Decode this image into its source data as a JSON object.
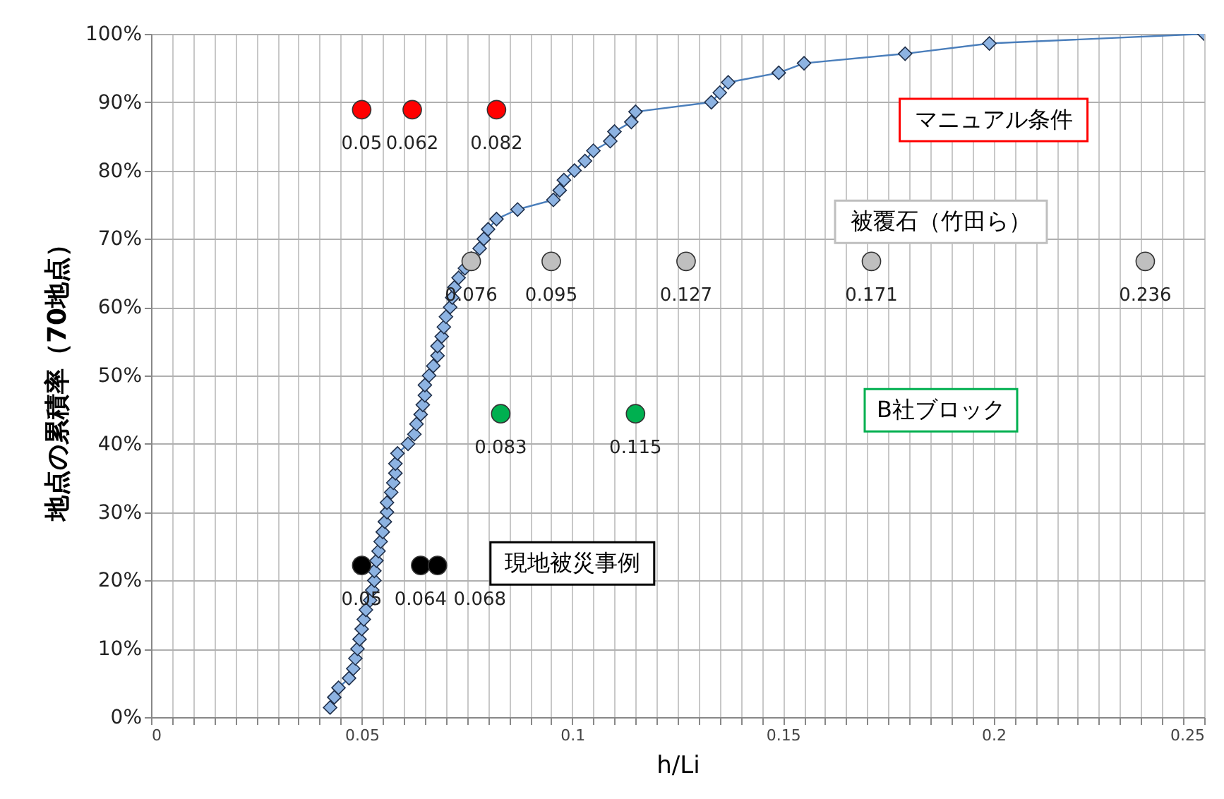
{
  "chart_data": {
    "type": "line",
    "xlabel": "h/Li",
    "ylabel": "地点の累積率（70地点）",
    "xlim": [
      0,
      0.25
    ],
    "ylim": [
      0,
      100
    ],
    "xticks": [
      0,
      {
        "value": 0.005,
        "label": null
      },
      {
        "value": 0.01,
        "label": null
      },
      {
        "value": 0.015,
        "label": null
      },
      {
        "value": 0.02,
        "label": null
      },
      {
        "value": 0.025,
        "label": null
      },
      {
        "value": 0.03,
        "label": null
      },
      {
        "value": 0.035,
        "label": null
      },
      {
        "value": 0.04,
        "label": null
      },
      {
        "value": 0.045,
        "label": null
      },
      0.05,
      {
        "value": 0.055,
        "label": null
      },
      {
        "value": 0.06,
        "label": null
      },
      {
        "value": 0.065,
        "label": null
      },
      {
        "value": 0.07,
        "label": null
      },
      {
        "value": 0.075,
        "label": null
      },
      {
        "value": 0.08,
        "label": null
      },
      {
        "value": 0.085,
        "label": null
      },
      {
        "value": 0.09,
        "label": null
      },
      {
        "value": 0.095,
        "label": null
      },
      0.1,
      {
        "value": 0.105,
        "label": null
      },
      {
        "value": 0.11,
        "label": null
      },
      {
        "value": 0.115,
        "label": null
      },
      {
        "value": 0.12,
        "label": null
      },
      {
        "value": 0.125,
        "label": null
      },
      {
        "value": 0.13,
        "label": null
      },
      {
        "value": 0.135,
        "label": null
      },
      {
        "value": 0.14,
        "label": null
      },
      {
        "value": 0.145,
        "label": null
      },
      0.15,
      {
        "value": 0.155,
        "label": null
      },
      {
        "value": 0.16,
        "label": null
      },
      {
        "value": 0.165,
        "label": null
      },
      {
        "value": 0.17,
        "label": null
      },
      {
        "value": 0.175,
        "label": null
      },
      {
        "value": 0.18,
        "label": null
      },
      {
        "value": 0.185,
        "label": null
      },
      {
        "value": 0.19,
        "label": null
      },
      {
        "value": 0.195,
        "label": null
      },
      0.2,
      {
        "value": 0.205,
        "label": null
      },
      {
        "value": 0.21,
        "label": null
      },
      {
        "value": 0.215,
        "label": null
      },
      {
        "value": 0.22,
        "label": null
      },
      {
        "value": 0.225,
        "label": null
      },
      {
        "value": 0.23,
        "label": null
      },
      {
        "value": 0.235,
        "label": null
      },
      {
        "value": 0.24,
        "label": null
      },
      {
        "value": 0.245,
        "label": null
      },
      0.25
    ],
    "yticks": [
      {
        "value": 0,
        "label": "0%"
      },
      {
        "value": 10,
        "label": "10%"
      },
      {
        "value": 20,
        "label": "20%"
      },
      {
        "value": 30,
        "label": "30%"
      },
      {
        "value": 40,
        "label": "40%"
      },
      {
        "value": 50,
        "label": "50%"
      },
      {
        "value": 60,
        "label": "60%"
      },
      {
        "value": 70,
        "label": "70%"
      },
      {
        "value": 80,
        "label": "80%"
      },
      {
        "value": 90,
        "label": "90%"
      },
      {
        "value": 100,
        "label": "100%"
      }
    ],
    "grid": true,
    "line_style": "solid",
    "series": [
      {
        "color": "#8db3e2",
        "marker": "diamond",
        "x": [
          0.0425,
          0.0435,
          0.0445,
          0.047,
          0.048,
          0.0485,
          0.049,
          0.0495,
          0.05,
          0.0505,
          0.051,
          0.052,
          0.0525,
          0.053,
          0.053,
          0.0535,
          0.054,
          0.0545,
          0.055,
          0.0555,
          0.056,
          0.056,
          0.057,
          0.0575,
          0.058,
          0.058,
          0.0585,
          0.061,
          0.0625,
          0.063,
          0.064,
          0.0645,
          0.065,
          0.065,
          0.066,
          0.067,
          0.068,
          0.068,
          0.069,
          0.0695,
          0.07,
          0.071,
          0.0715,
          0.072,
          0.073,
          0.0745,
          0.076,
          0.078,
          0.079,
          0.08,
          0.082,
          0.087,
          0.0955,
          0.097,
          0.098,
          0.1005,
          0.103,
          0.105,
          0.109,
          0.11,
          0.114,
          0.115,
          0.133,
          0.135,
          0.137,
          0.149,
          0.155,
          0.179,
          0.199,
          0.25
        ],
        "values": [
          1.4,
          2.9,
          4.3,
          5.7,
          7.1,
          8.6,
          10.0,
          11.4,
          12.9,
          14.3,
          15.7,
          17.1,
          18.6,
          20.0,
          21.4,
          22.9,
          24.3,
          25.7,
          27.1,
          28.6,
          30.0,
          31.4,
          32.9,
          34.3,
          35.7,
          37.1,
          38.6,
          40.0,
          41.4,
          42.9,
          44.3,
          45.7,
          47.1,
          48.6,
          50.0,
          51.4,
          52.9,
          54.3,
          55.7,
          57.1,
          58.6,
          60.0,
          61.4,
          62.9,
          64.3,
          65.7,
          67.1,
          68.6,
          70.0,
          71.4,
          72.9,
          74.3,
          75.7,
          77.1,
          78.6,
          80.0,
          81.4,
          82.9,
          84.3,
          85.7,
          87.1,
          88.6,
          90.0,
          91.4,
          92.9,
          94.3,
          95.7,
          97.1,
          98.6,
          100
        ]
      },
      {
        "type": "scatter",
        "color": "#ff0000",
        "marker": "circle",
        "x": [
          0.05,
          0.062,
          0.082
        ],
        "values": [
          88.9,
          88.9,
          88.9
        ]
      },
      {
        "type": "scatter",
        "color": "#bfbfbf",
        "marker": "circle",
        "x": [
          0.076,
          0.095,
          0.127,
          0.171,
          0.236
        ],
        "values": [
          66.7,
          66.7,
          66.7,
          66.7,
          66.7
        ]
      },
      {
        "type": "scatter",
        "color": "#00b050",
        "marker": "circle",
        "x": [
          0.083,
          0.115
        ],
        "values": [
          44.4,
          44.4
        ]
      },
      {
        "type": "scatter",
        "color": "#000000",
        "marker": "circle",
        "x": [
          0.05,
          0.064,
          0.068
        ],
        "values": [
          22.2,
          22.2,
          22.2
        ]
      }
    ],
    "annotations": [
      "マニュアル条件",
      "被覆石（竹田ら）",
      "B社ブロック",
      "現地被災事例",
      {
        "text": "0.05",
        "x": 0.05,
        "y": 88.9
      },
      {
        "text": "0.062",
        "x": 0.062,
        "y": 88.9
      },
      {
        "text": "0.082",
        "x": 0.082,
        "y": 88.9
      },
      {
        "text": "0.076",
        "x": 0.076,
        "y": 66.7
      },
      {
        "text": "0.095",
        "x": 0.095,
        "y": 66.7
      },
      {
        "text": "0.127",
        "x": 0.127,
        "y": 66.7
      },
      {
        "text": "0.171",
        "x": 0.171,
        "y": 66.7
      },
      {
        "text": "0.236",
        "x": 0.236,
        "y": 66.7
      },
      {
        "text": "0.083",
        "x": 0.083,
        "y": 44.4
      },
      {
        "text": "0.115",
        "x": 0.115,
        "y": 44.4
      },
      {
        "text": "0.05",
        "x": 0.05,
        "y": 22.2
      },
      {
        "text": "0.064",
        "x": 0.064,
        "y": 22.2
      },
      {
        "text": "0.068",
        "x": 0.068,
        "y": 22.2
      }
    ]
  }
}
